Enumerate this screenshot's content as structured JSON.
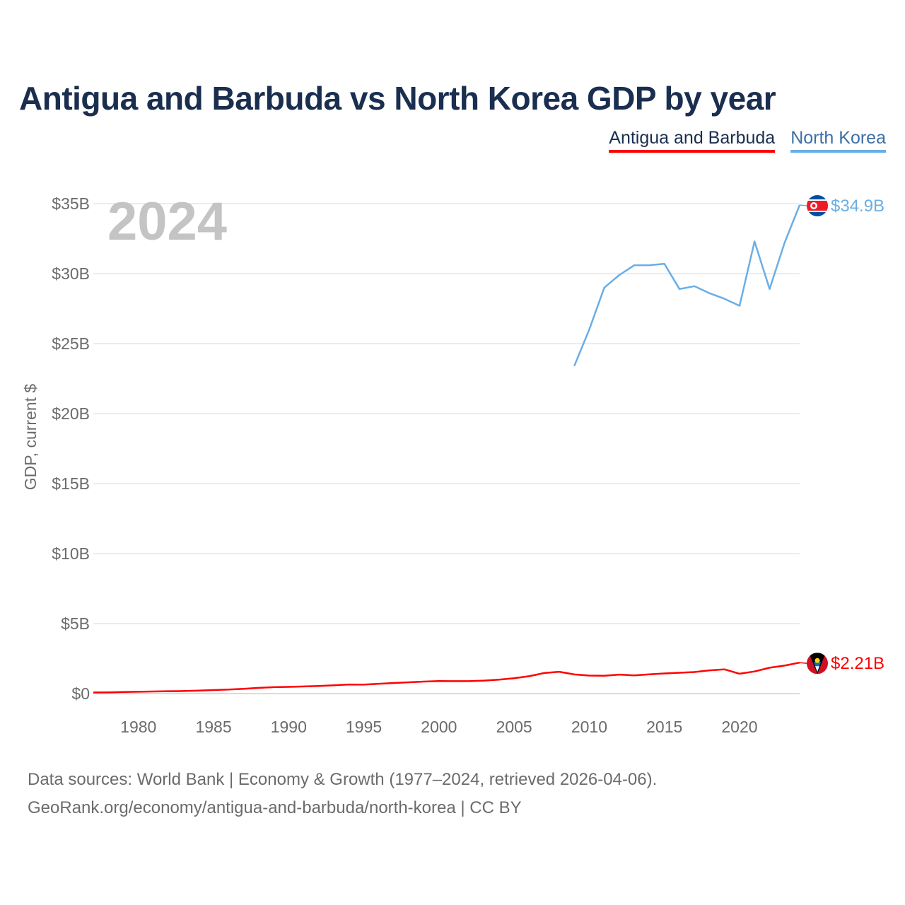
{
  "title": "Antigua and Barbuda vs North Korea GDP by year",
  "legend": [
    {
      "label": "Antigua and Barbuda",
      "color": "#ff0000"
    },
    {
      "label": "North Korea",
      "color": "#6aaee6"
    }
  ],
  "year_watermark": "2024",
  "footer": {
    "line1": "Data sources: World Bank | Economy & Growth (1977–2024, retrieved 2026-04-06).",
    "line2": "GeoRank.org/economy/antigua-and-barbuda/north-korea | CC BY"
  },
  "chart_data": {
    "type": "line",
    "title": "Antigua and Barbuda vs North Korea GDP by year",
    "xlabel": "",
    "ylabel": "GDP, current $",
    "xlim": [
      1977,
      2024
    ],
    "ylim": [
      0,
      35
    ],
    "y_unit": "billion USD",
    "yticks": [
      0,
      5,
      10,
      15,
      20,
      25,
      30,
      35
    ],
    "ytick_labels": [
      "$0",
      "$5B",
      "$10B",
      "$15B",
      "$20B",
      "$25B",
      "$30B",
      "$35B"
    ],
    "xticks": [
      1980,
      1985,
      1990,
      1995,
      2000,
      2005,
      2010,
      2015,
      2020
    ],
    "xtick_labels": [
      "1980",
      "1985",
      "1990",
      "1995",
      "2000",
      "2005",
      "2010",
      "2015",
      "2020"
    ],
    "grid": true,
    "series": [
      {
        "name": "Antigua and Barbuda",
        "color": "#ff0000",
        "end_label": "$2.21B",
        "flag": "antigua-and-barbuda-flag",
        "x": [
          1977,
          1978,
          1979,
          1980,
          1981,
          1982,
          1983,
          1984,
          1985,
          1986,
          1987,
          1988,
          1989,
          1990,
          1991,
          1992,
          1993,
          1994,
          1995,
          1996,
          1997,
          1998,
          1999,
          2000,
          2001,
          2002,
          2003,
          2004,
          2005,
          2006,
          2007,
          2008,
          2009,
          2010,
          2011,
          2012,
          2013,
          2014,
          2015,
          2016,
          2017,
          2018,
          2019,
          2020,
          2021,
          2022,
          2023,
          2024
        ],
        "values": [
          0.08,
          0.09,
          0.11,
          0.13,
          0.15,
          0.17,
          0.18,
          0.21,
          0.25,
          0.29,
          0.34,
          0.41,
          0.46,
          0.48,
          0.51,
          0.54,
          0.59,
          0.65,
          0.64,
          0.7,
          0.76,
          0.81,
          0.86,
          0.9,
          0.89,
          0.89,
          0.93,
          1.0,
          1.1,
          1.24,
          1.47,
          1.56,
          1.37,
          1.29,
          1.28,
          1.36,
          1.3,
          1.38,
          1.44,
          1.49,
          1.54,
          1.66,
          1.73,
          1.42,
          1.58,
          1.85,
          2.0,
          2.21
        ]
      },
      {
        "name": "North Korea",
        "color": "#6aaee6",
        "end_label": "$34.9B",
        "flag": "north-korea-flag",
        "x": [
          2009,
          2010,
          2011,
          2012,
          2013,
          2014,
          2015,
          2016,
          2017,
          2018,
          2019,
          2020,
          2021,
          2022,
          2023,
          2024
        ],
        "values": [
          23.4,
          26.0,
          29.0,
          29.9,
          30.6,
          30.6,
          30.7,
          28.9,
          29.1,
          28.6,
          28.2,
          27.7,
          32.3,
          28.9,
          32.2,
          34.9
        ]
      }
    ]
  }
}
